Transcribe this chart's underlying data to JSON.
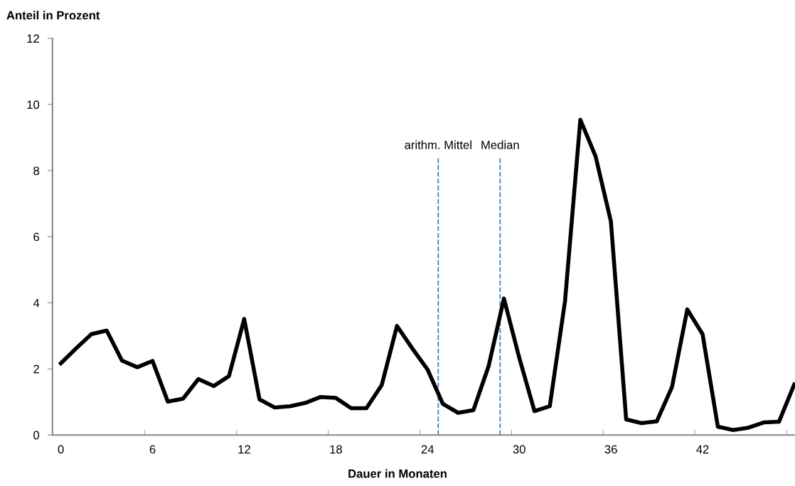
{
  "chart_data": {
    "type": "line",
    "xlabel": "Dauer in Monaten",
    "ylabel": "Anteil in Prozent",
    "x": [
      0,
      1,
      2,
      3,
      4,
      5,
      6,
      7,
      8,
      9,
      10,
      11,
      12,
      13,
      14,
      15,
      16,
      17,
      18,
      19,
      20,
      21,
      22,
      23,
      24,
      25,
      26,
      27,
      28,
      29,
      30,
      31,
      32,
      33,
      34,
      35,
      36,
      37,
      38,
      39,
      40,
      41,
      42,
      43,
      44,
      45,
      46,
      47,
      48
    ],
    "series": [
      {
        "color": "#000000",
        "values": [
          2.17,
          2.62,
          3.05,
          3.16,
          2.25,
          2.05,
          2.24,
          1.01,
          1.1,
          1.69,
          1.48,
          1.78,
          3.51,
          1.08,
          0.83,
          0.87,
          0.97,
          1.15,
          1.12,
          0.81,
          0.81,
          1.51,
          3.3,
          2.62,
          1.98,
          0.94,
          0.67,
          0.75,
          2.09,
          4.13,
          2.34,
          0.72,
          0.87,
          4.06,
          9.54,
          8.43,
          6.46,
          0.47,
          0.36,
          0.41,
          1.45,
          3.8,
          3.05,
          0.25,
          0.15,
          0.22,
          0.38,
          0.4,
          1.53
        ]
      }
    ],
    "xlim": [
      -0.55,
      48.05
    ],
    "xticks": [
      0,
      6,
      12,
      18,
      24,
      30,
      36,
      42,
      {
        "value": 5.5,
        "label": null
      },
      {
        "value": 11.5,
        "label": null
      },
      {
        "value": 17.5,
        "label": null
      },
      {
        "value": 23.5,
        "label": null
      },
      {
        "value": 29.5,
        "label": null
      },
      {
        "value": 35.5,
        "label": null
      },
      {
        "value": 41.5,
        "label": null
      },
      {
        "value": 47.5,
        "label": null
      }
    ],
    "ylim": [
      0,
      12
    ],
    "yticks": [
      0,
      2,
      4,
      6,
      8,
      10,
      12
    ],
    "ref_lines": [
      {
        "axis": "x",
        "value": 24.7,
        "label": "arithm. Mittel",
        "color": "#4a7ebb",
        "line_style": "dashed"
      },
      {
        "axis": "x",
        "value": 28.75,
        "label": "Median",
        "color": "#4a7ebb",
        "line_style": "dashed"
      }
    ],
    "grid": false,
    "legend": false,
    "marker": "none",
    "line_style": "solid"
  }
}
